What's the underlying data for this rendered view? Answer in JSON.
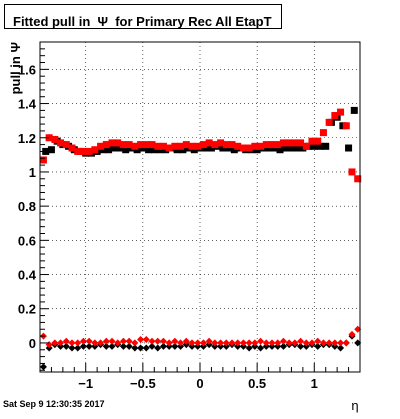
{
  "chart_data": {
    "type": "scatter",
    "title": "Fitted pull in  Ψ  for Primary Rec All EtapT",
    "ylabel": "pull in Ψ",
    "xlabel": "η",
    "xlim": [
      -1.4,
      1.4
    ],
    "ylim": [
      -0.17,
      1.76
    ],
    "x_ticks": [
      "−1",
      "−0.5",
      "0",
      "0.5",
      "1"
    ],
    "x_tick_values": [
      -1,
      -0.5,
      0,
      0.5,
      1
    ],
    "y_ticks": [
      "0",
      "0.2",
      "0.4",
      "0.6",
      "0.8",
      "1",
      "1.2",
      "1.4",
      "1.6"
    ],
    "y_tick_values": [
      0,
      0.2,
      0.4,
      0.6,
      0.8,
      1,
      1.2,
      1.4,
      1.6
    ],
    "grid": true,
    "series": [
      {
        "name": "",
        "color": "#000000",
        "marker": "square",
        "x": [
          -1.35,
          -1.3,
          -1.25,
          -1.2,
          -1.15,
          -1.1,
          -1.05,
          -1.0,
          -0.95,
          -0.9,
          -0.85,
          -0.8,
          -0.75,
          -0.7,
          -0.65,
          -0.6,
          -0.55,
          -0.5,
          -0.45,
          -0.4,
          -0.35,
          -0.3,
          -0.25,
          -0.2,
          -0.15,
          -0.1,
          -0.05,
          0.0,
          0.05,
          0.1,
          0.15,
          0.2,
          0.25,
          0.3,
          0.35,
          0.4,
          0.45,
          0.5,
          0.55,
          0.6,
          0.65,
          0.7,
          0.75,
          0.8,
          0.85,
          0.9,
          0.95,
          1.0,
          1.05,
          1.1,
          1.15,
          1.2,
          1.25,
          1.3,
          1.35
        ],
        "values": [
          1.12,
          1.13,
          1.18,
          1.16,
          1.15,
          1.13,
          1.12,
          1.11,
          1.11,
          1.12,
          1.13,
          1.13,
          1.14,
          1.14,
          1.13,
          1.14,
          1.13,
          1.14,
          1.13,
          1.13,
          1.13,
          1.13,
          1.14,
          1.13,
          1.13,
          1.14,
          1.13,
          1.14,
          1.14,
          1.14,
          1.15,
          1.14,
          1.14,
          1.13,
          1.14,
          1.13,
          1.13,
          1.13,
          1.14,
          1.14,
          1.14,
          1.13,
          1.14,
          1.14,
          1.14,
          1.14,
          1.15,
          1.15,
          1.15,
          1.15,
          1.29,
          1.32,
          1.27,
          1.14,
          1.36
        ]
      },
      {
        "name": "",
        "color": "#ff0000",
        "marker": "square",
        "x": [
          -1.37,
          -1.32,
          -1.27,
          -1.22,
          -1.17,
          -1.12,
          -1.07,
          -1.02,
          -0.97,
          -0.92,
          -0.87,
          -0.82,
          -0.77,
          -0.72,
          -0.67,
          -0.62,
          -0.57,
          -0.52,
          -0.47,
          -0.42,
          -0.37,
          -0.32,
          -0.27,
          -0.22,
          -0.17,
          -0.12,
          -0.07,
          -0.02,
          0.03,
          0.08,
          0.13,
          0.18,
          0.23,
          0.28,
          0.33,
          0.38,
          0.43,
          0.48,
          0.53,
          0.58,
          0.63,
          0.68,
          0.73,
          0.78,
          0.83,
          0.88,
          0.93,
          0.98,
          1.03,
          1.08,
          1.13,
          1.18,
          1.23,
          1.28,
          1.33,
          1.38
        ],
        "values": [
          1.07,
          1.2,
          1.19,
          1.17,
          1.16,
          1.14,
          1.12,
          1.12,
          1.12,
          1.13,
          1.15,
          1.16,
          1.17,
          1.17,
          1.16,
          1.16,
          1.15,
          1.16,
          1.16,
          1.16,
          1.15,
          1.15,
          1.14,
          1.15,
          1.15,
          1.16,
          1.15,
          1.15,
          1.16,
          1.17,
          1.16,
          1.17,
          1.16,
          1.16,
          1.15,
          1.14,
          1.14,
          1.15,
          1.15,
          1.16,
          1.16,
          1.16,
          1.17,
          1.17,
          1.17,
          1.17,
          1.15,
          1.18,
          1.18,
          1.23,
          1.29,
          1.33,
          1.35,
          1.27,
          1.0,
          0.96
        ]
      },
      {
        "name": "",
        "color": "#000000",
        "marker": "diamond",
        "x": [
          -1.37,
          -1.32,
          -1.27,
          -1.22,
          -1.17,
          -1.12,
          -1.07,
          -1.02,
          -0.97,
          -0.92,
          -0.87,
          -0.82,
          -0.77,
          -0.72,
          -0.67,
          -0.62,
          -0.57,
          -0.52,
          -0.47,
          -0.42,
          -0.37,
          -0.32,
          -0.27,
          -0.22,
          -0.17,
          -0.12,
          -0.07,
          -0.02,
          0.03,
          0.08,
          0.13,
          0.18,
          0.23,
          0.28,
          0.33,
          0.38,
          0.43,
          0.48,
          0.53,
          0.58,
          0.63,
          0.68,
          0.73,
          0.78,
          0.83,
          0.88,
          0.93,
          0.98,
          1.03,
          1.08,
          1.13,
          1.18,
          1.23,
          1.28,
          1.33,
          1.38
        ],
        "values": [
          -0.14,
          -0.03,
          -0.01,
          -0.02,
          -0.02,
          -0.03,
          -0.03,
          -0.02,
          -0.02,
          -0.02,
          -0.01,
          -0.02,
          -0.02,
          -0.01,
          -0.02,
          -0.02,
          -0.03,
          -0.03,
          -0.03,
          -0.02,
          -0.03,
          -0.02,
          -0.02,
          -0.02,
          -0.02,
          -0.01,
          -0.02,
          -0.02,
          -0.02,
          -0.01,
          -0.02,
          -0.02,
          -0.02,
          -0.01,
          -0.02,
          -0.02,
          -0.03,
          -0.02,
          -0.03,
          -0.02,
          -0.02,
          -0.02,
          -0.02,
          -0.01,
          -0.01,
          -0.02,
          -0.02,
          -0.01,
          -0.02,
          -0.01,
          -0.01,
          -0.02,
          -0.03,
          0.0,
          0.04,
          0.0
        ]
      },
      {
        "name": "",
        "color": "#ff0000",
        "marker": "diamond",
        "x": [
          -1.37,
          -1.32,
          -1.27,
          -1.22,
          -1.17,
          -1.12,
          -1.07,
          -1.02,
          -0.97,
          -0.92,
          -0.87,
          -0.82,
          -0.77,
          -0.72,
          -0.67,
          -0.62,
          -0.57,
          -0.52,
          -0.47,
          -0.42,
          -0.37,
          -0.32,
          -0.27,
          -0.22,
          -0.17,
          -0.12,
          -0.07,
          -0.02,
          0.03,
          0.08,
          0.13,
          0.18,
          0.23,
          0.28,
          0.33,
          0.38,
          0.43,
          0.48,
          0.53,
          0.58,
          0.63,
          0.68,
          0.73,
          0.78,
          0.83,
          0.88,
          0.93,
          0.98,
          1.03,
          1.08,
          1.13,
          1.18,
          1.23,
          1.28,
          1.33,
          1.38
        ],
        "values": [
          0.04,
          -0.01,
          0.0,
          0.0,
          0.01,
          0.0,
          0.0,
          0.01,
          0.01,
          0.0,
          0.0,
          0.01,
          0.01,
          0.0,
          0.01,
          0.01,
          0.0,
          0.02,
          0.02,
          0.01,
          0.01,
          0.01,
          0.0,
          0.01,
          0.0,
          0.01,
          0.0,
          0.0,
          0.0,
          0.01,
          0.0,
          0.0,
          0.0,
          0.0,
          0.0,
          0.0,
          0.0,
          0.0,
          0.01,
          0.0,
          0.0,
          0.0,
          0.01,
          0.0,
          0.0,
          0.01,
          0.0,
          0.0,
          0.01,
          0.0,
          0.0,
          0.0,
          0.0,
          0.0,
          0.05,
          0.08
        ]
      }
    ]
  },
  "footer": {
    "timestamp": "Sat Sep  9 12:30:35 2017"
  }
}
